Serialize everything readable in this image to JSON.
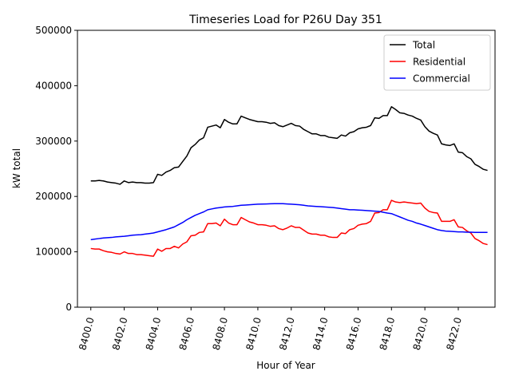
{
  "chart_data": {
    "type": "line",
    "title": "Timeseries Load for P26U   Day 351",
    "xlabel": "Hour of Year",
    "ylabel": "kW total",
    "xlim": [
      8399.2,
      8424.2
    ],
    "ylim": [
      0,
      500000
    ],
    "xticks": [
      8400,
      8402,
      8404,
      8406,
      8408,
      8410,
      8412,
      8414,
      8416,
      8418,
      8420,
      8422
    ],
    "xtick_labels": [
      "8400.0",
      "8402.0",
      "8404.0",
      "8406.0",
      "8408.0",
      "8410.0",
      "8412.0",
      "8414.0",
      "8416.0",
      "8418.0",
      "8420.0",
      "8422.0"
    ],
    "yticks": [
      0,
      100000,
      200000,
      300000,
      400000,
      500000
    ],
    "ytick_labels": [
      "0",
      "100000",
      "200000",
      "300000",
      "400000",
      "500000"
    ],
    "legend_position": "top-right",
    "x_start": 8400,
    "x_step": 0.25,
    "series": [
      {
        "name": "Total",
        "color": "#000000",
        "values": [
          228000,
          228000,
          229000,
          228000,
          226000,
          225000,
          224000,
          222000,
          228000,
          225000,
          226000,
          225000,
          225000,
          224000,
          224000,
          225000,
          240000,
          238000,
          244000,
          247000,
          252000,
          253000,
          263000,
          273000,
          288000,
          294000,
          302000,
          306000,
          325000,
          327000,
          329000,
          324000,
          339000,
          334000,
          331000,
          331000,
          345000,
          342000,
          339000,
          337000,
          335000,
          335000,
          334000,
          332000,
          333000,
          328000,
          326000,
          329000,
          332000,
          328000,
          327000,
          321000,
          317000,
          313000,
          313000,
          310000,
          310000,
          307000,
          306000,
          305000,
          311000,
          309000,
          315000,
          317000,
          322000,
          324000,
          325000,
          328000,
          342000,
          341000,
          346000,
          346000,
          362000,
          357000,
          351000,
          350000,
          347000,
          345000,
          341000,
          338000,
          326000,
          318000,
          314000,
          311000,
          295000,
          293000,
          292000,
          295000,
          280000,
          279000,
          272000,
          268000,
          258000,
          254000,
          249000,
          247000
        ]
      },
      {
        "name": "Residential",
        "color": "#ff0000",
        "values": [
          106000,
          105000,
          105000,
          102000,
          100000,
          99000,
          97000,
          96000,
          100000,
          97000,
          97000,
          95000,
          95000,
          94000,
          93000,
          92000,
          105000,
          101000,
          106000,
          106000,
          110000,
          107000,
          114000,
          118000,
          129000,
          130000,
          135000,
          136000,
          151000,
          151000,
          152000,
          147000,
          159000,
          152000,
          149000,
          149000,
          162000,
          158000,
          154000,
          152000,
          149000,
          149000,
          148000,
          146000,
          147000,
          142000,
          140000,
          143000,
          147000,
          144000,
          144000,
          139000,
          134000,
          132000,
          132000,
          130000,
          130000,
          127000,
          126000,
          126000,
          134000,
          133000,
          140000,
          142000,
          148000,
          150000,
          151000,
          155000,
          170000,
          171000,
          176000,
          176000,
          193000,
          190000,
          189000,
          190000,
          189000,
          188000,
          187000,
          188000,
          179000,
          173000,
          171000,
          170000,
          155000,
          155000,
          155000,
          158000,
          145000,
          144000,
          138000,
          134000,
          124000,
          120000,
          115000,
          113000
        ]
      },
      {
        "name": "Commercial",
        "color": "#0000ff",
        "values": [
          122000,
          123000,
          124000,
          125000,
          125500,
          126000,
          127000,
          127500,
          128000,
          129000,
          130000,
          130500,
          131000,
          132000,
          133000,
          134000,
          136000,
          138000,
          140000,
          142500,
          145000,
          149000,
          153000,
          158000,
          162000,
          166000,
          169000,
          172000,
          176000,
          177500,
          179000,
          180000,
          181000,
          181500,
          182000,
          183000,
          184000,
          184500,
          185000,
          185500,
          186000,
          186200,
          186500,
          186800,
          187000,
          187000,
          187000,
          186500,
          186000,
          185500,
          185000,
          184000,
          183000,
          182500,
          182000,
          181500,
          181000,
          180500,
          180000,
          179000,
          178000,
          177000,
          176000,
          176000,
          175500,
          175000,
          174500,
          174000,
          173500,
          173000,
          171500,
          170000,
          169000,
          166000,
          163000,
          160000,
          157000,
          155000,
          152000,
          150000,
          147500,
          145000,
          142500,
          140000,
          138500,
          137500,
          137000,
          136500,
          136000,
          136000,
          135500,
          135500,
          135000,
          135000,
          135000,
          135000
        ]
      }
    ]
  }
}
